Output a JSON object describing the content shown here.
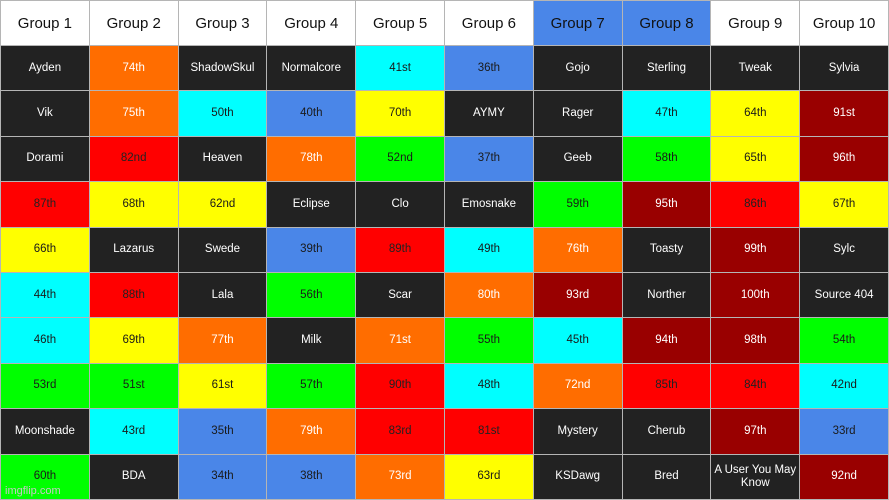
{
  "colors": {
    "dark": "#222222",
    "orange": "#ff6d00",
    "cyan": "#00ffff",
    "blue": "#4a86e8",
    "yellow": "#ffff00",
    "red": "#ff0000",
    "green": "#00ff00",
    "maroon": "#990000",
    "header_white": "#ffffff",
    "header_blue": "#4a86e8"
  },
  "headers": [
    {
      "label": "Group 1",
      "color": "header_white"
    },
    {
      "label": "Group 2",
      "color": "header_white"
    },
    {
      "label": "Group 3",
      "color": "header_white"
    },
    {
      "label": "Group 4",
      "color": "header_white"
    },
    {
      "label": "Group 5",
      "color": "header_white"
    },
    {
      "label": "Group 6",
      "color": "header_white"
    },
    {
      "label": "Group 7",
      "color": "header_blue"
    },
    {
      "label": "Group 8",
      "color": "header_blue"
    },
    {
      "label": "Group 9",
      "color": "header_white"
    },
    {
      "label": "Group 10",
      "color": "header_white"
    }
  ],
  "rows": [
    [
      {
        "text": "Ayden",
        "color": "dark"
      },
      {
        "text": "74th",
        "color": "orange"
      },
      {
        "text": "ShadowSkul",
        "color": "dark"
      },
      {
        "text": "Normalcore",
        "color": "dark"
      },
      {
        "text": "41st",
        "color": "cyan"
      },
      {
        "text": "36th",
        "color": "blue"
      },
      {
        "text": "Gojo",
        "color": "dark"
      },
      {
        "text": "Sterling",
        "color": "dark"
      },
      {
        "text": "Tweak",
        "color": "dark"
      },
      {
        "text": "Sylvia",
        "color": "dark"
      }
    ],
    [
      {
        "text": "Vik",
        "color": "dark"
      },
      {
        "text": "75th",
        "color": "orange"
      },
      {
        "text": "50th",
        "color": "cyan"
      },
      {
        "text": "40th",
        "color": "blue"
      },
      {
        "text": "70th",
        "color": "yellow"
      },
      {
        "text": "AYMY",
        "color": "dark"
      },
      {
        "text": "Rager",
        "color": "dark"
      },
      {
        "text": "47th",
        "color": "cyan"
      },
      {
        "text": "64th",
        "color": "yellow"
      },
      {
        "text": "91st",
        "color": "maroon"
      }
    ],
    [
      {
        "text": "Dorami",
        "color": "dark"
      },
      {
        "text": "82nd",
        "color": "red"
      },
      {
        "text": "Heaven",
        "color": "dark"
      },
      {
        "text": "78th",
        "color": "orange"
      },
      {
        "text": "52nd",
        "color": "green"
      },
      {
        "text": "37th",
        "color": "blue"
      },
      {
        "text": "Geeb",
        "color": "dark"
      },
      {
        "text": "58th",
        "color": "green"
      },
      {
        "text": "65th",
        "color": "yellow"
      },
      {
        "text": "96th",
        "color": "maroon"
      }
    ],
    [
      {
        "text": "87th",
        "color": "red"
      },
      {
        "text": "68th",
        "color": "yellow"
      },
      {
        "text": "62nd",
        "color": "yellow"
      },
      {
        "text": "Eclipse",
        "color": "dark"
      },
      {
        "text": "Clo",
        "color": "dark"
      },
      {
        "text": "Emosnake",
        "color": "dark"
      },
      {
        "text": "59th",
        "color": "green"
      },
      {
        "text": "95th",
        "color": "maroon"
      },
      {
        "text": "86th",
        "color": "red"
      },
      {
        "text": "67th",
        "color": "yellow"
      }
    ],
    [
      {
        "text": "66th",
        "color": "yellow"
      },
      {
        "text": "Lazarus",
        "color": "dark"
      },
      {
        "text": "Swede",
        "color": "dark"
      },
      {
        "text": "39th",
        "color": "blue"
      },
      {
        "text": "89th",
        "color": "red"
      },
      {
        "text": "49th",
        "color": "cyan"
      },
      {
        "text": "76th",
        "color": "orange"
      },
      {
        "text": "Toasty",
        "color": "dark"
      },
      {
        "text": "99th",
        "color": "maroon"
      },
      {
        "text": "Sylc",
        "color": "dark"
      }
    ],
    [
      {
        "text": "44th",
        "color": "cyan"
      },
      {
        "text": "88th",
        "color": "red"
      },
      {
        "text": "Lala",
        "color": "dark"
      },
      {
        "text": "56th",
        "color": "green"
      },
      {
        "text": "Scar",
        "color": "dark"
      },
      {
        "text": "80th",
        "color": "orange"
      },
      {
        "text": "93rd",
        "color": "maroon"
      },
      {
        "text": "Norther",
        "color": "dark"
      },
      {
        "text": "100th",
        "color": "maroon"
      },
      {
        "text": "Source 404",
        "color": "dark"
      }
    ],
    [
      {
        "text": "46th",
        "color": "cyan"
      },
      {
        "text": "69th",
        "color": "yellow"
      },
      {
        "text": "77th",
        "color": "orange"
      },
      {
        "text": "Milk",
        "color": "dark"
      },
      {
        "text": "71st",
        "color": "orange"
      },
      {
        "text": "55th",
        "color": "green"
      },
      {
        "text": "45th",
        "color": "cyan"
      },
      {
        "text": "94th",
        "color": "maroon"
      },
      {
        "text": "98th",
        "color": "maroon"
      },
      {
        "text": "54th",
        "color": "green"
      }
    ],
    [
      {
        "text": "53rd",
        "color": "green"
      },
      {
        "text": "51st",
        "color": "green"
      },
      {
        "text": "61st",
        "color": "yellow"
      },
      {
        "text": "57th",
        "color": "green"
      },
      {
        "text": "90th",
        "color": "red"
      },
      {
        "text": "48th",
        "color": "cyan"
      },
      {
        "text": "72nd",
        "color": "orange"
      },
      {
        "text": "85th",
        "color": "red"
      },
      {
        "text": "84th",
        "color": "red"
      },
      {
        "text": "42nd",
        "color": "cyan"
      }
    ],
    [
      {
        "text": "Moonshade",
        "color": "dark"
      },
      {
        "text": "43rd",
        "color": "cyan"
      },
      {
        "text": "35th",
        "color": "blue"
      },
      {
        "text": "79th",
        "color": "orange"
      },
      {
        "text": "83rd",
        "color": "red"
      },
      {
        "text": "81st",
        "color": "red"
      },
      {
        "text": "Mystery",
        "color": "dark"
      },
      {
        "text": "Cherub",
        "color": "dark"
      },
      {
        "text": "97th",
        "color": "maroon"
      },
      {
        "text": "33rd",
        "color": "blue"
      }
    ],
    [
      {
        "text": "60th",
        "color": "green"
      },
      {
        "text": "BDA",
        "color": "dark"
      },
      {
        "text": "34th",
        "color": "blue"
      },
      {
        "text": "38th",
        "color": "blue"
      },
      {
        "text": "73rd",
        "color": "orange"
      },
      {
        "text": "63rd",
        "color": "yellow"
      },
      {
        "text": "KSDawg",
        "color": "dark"
      },
      {
        "text": "Bred",
        "color": "dark"
      },
      {
        "text": "A User You May Know",
        "color": "dark"
      },
      {
        "text": "92nd",
        "color": "maroon"
      }
    ]
  ],
  "watermark": "imgflip.com"
}
